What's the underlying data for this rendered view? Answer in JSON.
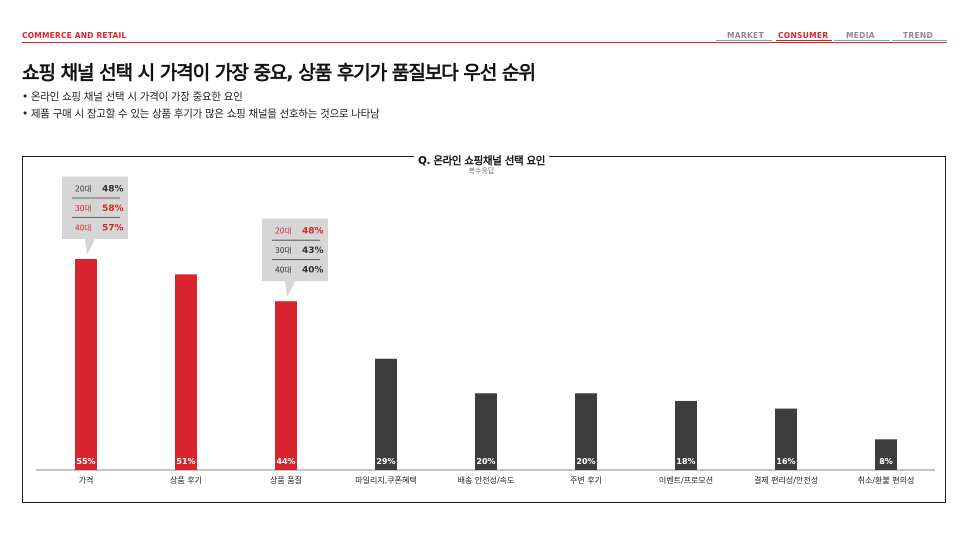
{
  "header": {
    "section": "COMMERCE AND RETAIL",
    "nav": [
      {
        "label": "MARKET",
        "active": false
      },
      {
        "label": "CONSUMER",
        "active": true
      },
      {
        "label": "MEDIA",
        "active": false
      },
      {
        "label": "TREND",
        "active": false
      }
    ]
  },
  "title": "쇼핑 채널 선택 시 가격이 가장 중요, 상품 후기가 품질보다 우선 순위",
  "bullets": [
    "• 온라인 쇼핑 채널 선택 시 가격이 가장 중요한 요인",
    "• 제품 구매 시 참고할 수 있는 상품 후기가 많은 쇼핑 채널을 선호하는 것으로 나타남"
  ],
  "colors": {
    "accent": "#d9262e",
    "highlight_bar": "#d9262e",
    "normal_bar": "#3d3d3d",
    "callout_bg": "#d6d6d6"
  },
  "chart_data": {
    "type": "bar",
    "title": "Q. 온라인 쇼핑채널 선택 요인",
    "subtitle": "복수응답",
    "categories": [
      "가격",
      "상품 후기",
      "상품 품질",
      "마일리지,쿠폰혜택",
      "배송 안전성/속도",
      "주변 후기",
      "이벤트/프로모션",
      "결제 편리성/안전성",
      "취소/환불 편의성"
    ],
    "values": [
      55,
      51,
      44,
      29,
      20,
      20,
      18,
      16,
      8
    ],
    "value_labels": [
      "55%",
      "51%",
      "44%",
      "29%",
      "20%",
      "20%",
      "18%",
      "16%",
      "8%"
    ],
    "highlighted": [
      true,
      true,
      true,
      false,
      false,
      false,
      false,
      false,
      false
    ],
    "ylim": [
      0,
      60
    ],
    "xlabel": "",
    "ylabel": "",
    "callouts": [
      {
        "category": "가격",
        "rows": [
          {
            "age": "20대",
            "value": "48%",
            "red": false
          },
          {
            "age": "30대",
            "value": "58%",
            "red": true
          },
          {
            "age": "40대",
            "value": "57%",
            "red": true
          }
        ]
      },
      {
        "category": "상품 품질",
        "rows": [
          {
            "age": "20대",
            "value": "48%",
            "red": true
          },
          {
            "age": "30대",
            "value": "43%",
            "red": false
          },
          {
            "age": "40대",
            "value": "40%",
            "red": false
          }
        ]
      }
    ]
  }
}
